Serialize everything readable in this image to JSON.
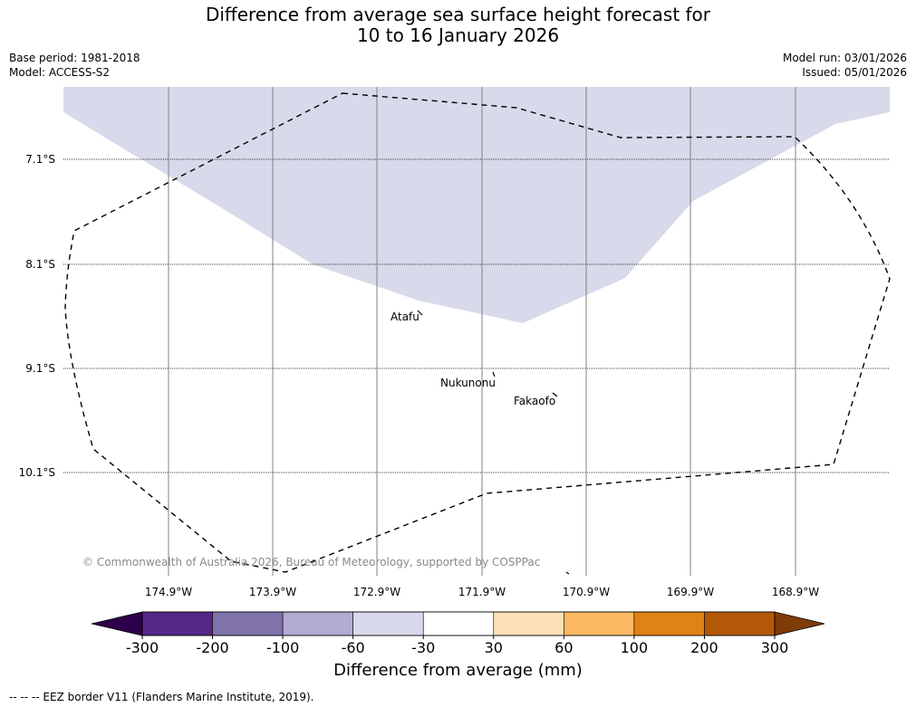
{
  "title_line1": "Difference from average sea surface height forecast for",
  "title_line2": "10 to 16 January 2026",
  "base_period": "Base period: 1981-2018",
  "model": "Model: ACCESS-S2",
  "model_run": "Model run: 03/01/2026",
  "issued": "Issued: 05/01/2026",
  "latitudes": [
    "7.1°S",
    "8.1°S",
    "9.1°S",
    "10.1°S"
  ],
  "longitudes": [
    "174.9°W",
    "173.9°W",
    "172.9°W",
    "171.9°W",
    "170.9°W",
    "169.9°W",
    "168.9°W"
  ],
  "places": {
    "atafu": "Atafu",
    "nukunonu": "Nukunonu",
    "fakaofo": "Fakaofo"
  },
  "copyright": "© Commonwealth of Australia 2026, Bureau of Meteorology, supported by COSPPac",
  "colorbar": {
    "title": "Difference from average (mm)",
    "ticks": [
      "-300",
      "-200",
      "-100",
      "-60",
      "-30",
      "30",
      "60",
      "100",
      "200",
      "300"
    ],
    "colors": [
      "#2d004b",
      "#542788",
      "#8073ac",
      "#b2abd2",
      "#d8daeb",
      "#ffffff",
      "#fee0b6",
      "#fdb863",
      "#e08214",
      "#b35806",
      "#7f3b08"
    ]
  },
  "anomaly_fill_color": "#d8daeb",
  "eez_note": "--  --  -- EEZ border V11 (Flanders Marine Institute, 2019)."
}
